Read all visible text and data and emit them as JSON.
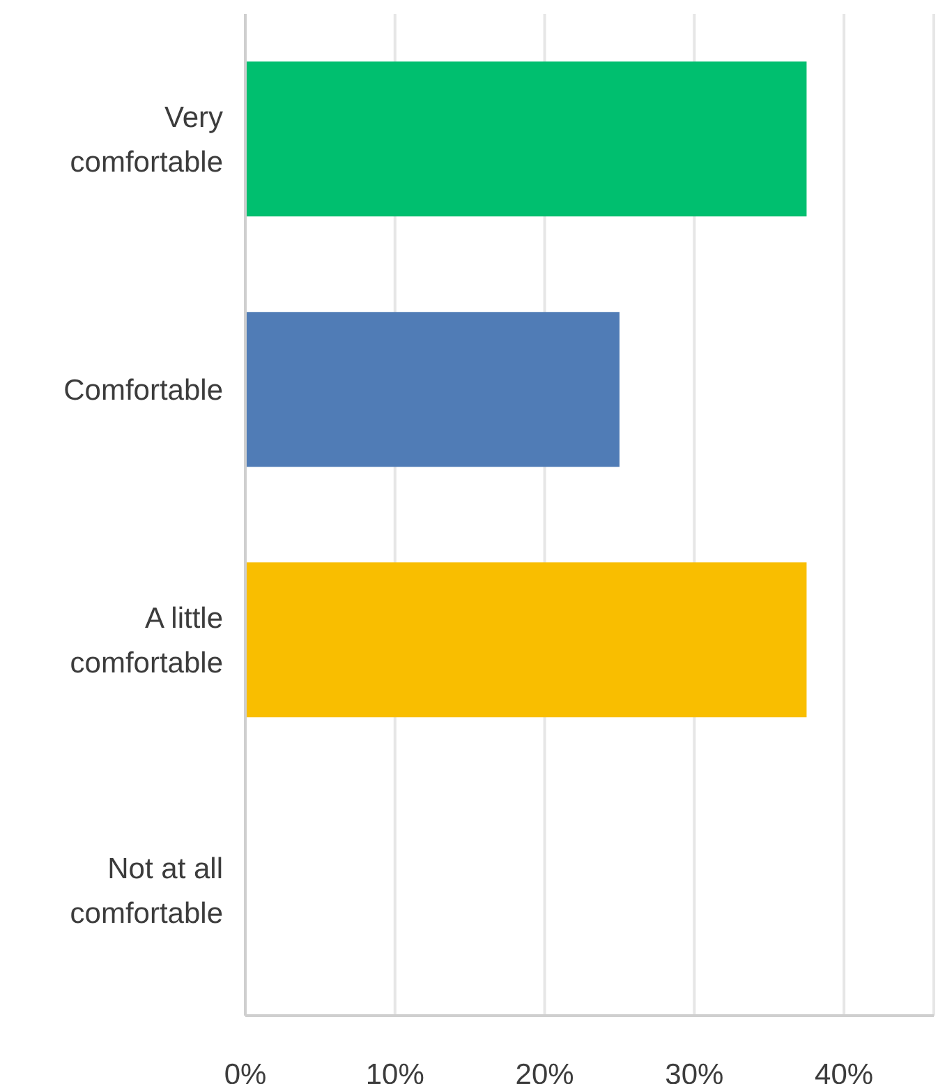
{
  "chart_data": {
    "type": "bar",
    "orientation": "horizontal",
    "categories": [
      "Very comfortable",
      "Comfortable",
      "A little comfortable",
      "Not at all comfortable"
    ],
    "values": [
      37.5,
      25,
      37.5,
      0
    ],
    "colors": [
      "#00bf6f",
      "#507cb6",
      "#f9be00",
      null
    ],
    "xlim": [
      0,
      46
    ],
    "xticks": [
      {
        "value": 0,
        "label": "0%"
      },
      {
        "value": 10,
        "label": "10%"
      },
      {
        "value": 20,
        "label": "20%"
      },
      {
        "value": 30,
        "label": "30%"
      },
      {
        "value": 40,
        "label": "40%"
      }
    ],
    "grid": "x"
  }
}
